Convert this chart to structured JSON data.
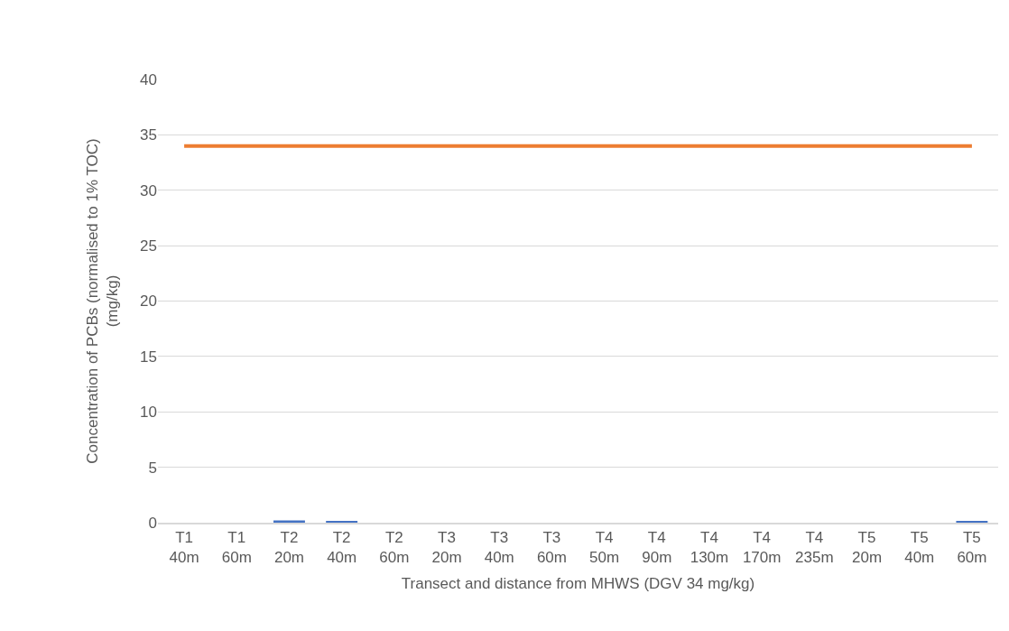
{
  "chart_data": {
    "type": "bar",
    "xlabel": "Transect and distance from MHWS (DGV 34 mg/kg)",
    "ylabel": "Concentration of PCBs (normalised to 1% TOC) (mg/kg)",
    "categories": [
      "T1 40m",
      "T1 60m",
      "T2 20m",
      "T2 40m",
      "T2 60m",
      "T3 20m",
      "T3 40m",
      "T3 60m",
      "T4 50m",
      "T4 90m",
      "T4 130m",
      "T4 170m",
      "T4 235m",
      "T5 20m",
      "T5 40m",
      "T5 60m"
    ],
    "series": [
      {
        "color": "#4472c4",
        "values": [
          0,
          0,
          0.2,
          0.1,
          0,
          0,
          0,
          0,
          0,
          0,
          0,
          0,
          0,
          0,
          0,
          0.1
        ]
      },
      {
        "type": "line",
        "color": "#ed7d31",
        "values": [
          34,
          34,
          34,
          34,
          34,
          34,
          34,
          34,
          34,
          34,
          34,
          34,
          34,
          34,
          34,
          34
        ]
      }
    ],
    "ylim": [
      0,
      40
    ],
    "yticks": [
      0,
      5,
      10,
      15,
      20,
      25,
      30,
      35,
      40
    ],
    "grid": "y",
    "legend": false
  }
}
